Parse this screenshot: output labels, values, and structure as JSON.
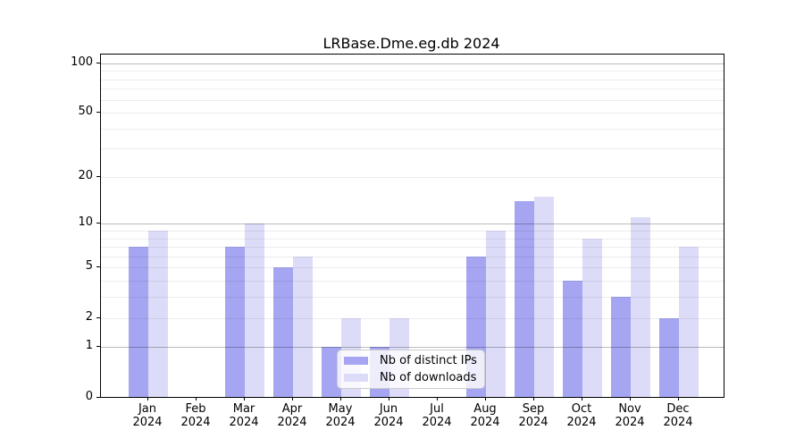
{
  "chart_data": {
    "type": "bar",
    "title": "LRBase.Dme.eg.db 2024",
    "categories": [
      "Jan",
      "Feb",
      "Mar",
      "Apr",
      "May",
      "Jun",
      "Jul",
      "Aug",
      "Sep",
      "Oct",
      "Nov",
      "Dec"
    ],
    "category_year": "2024",
    "series": [
      {
        "name": "Nb of distinct IPs",
        "color": "#a5a5f1",
        "values": [
          7,
          0,
          7,
          5,
          1,
          1,
          0,
          6,
          14,
          4,
          3,
          2
        ]
      },
      {
        "name": "Nb of downloads",
        "color": "#dcdcf8",
        "values": [
          9,
          0,
          10,
          6,
          2,
          2,
          0,
          9,
          15,
          8,
          11,
          7
        ]
      }
    ],
    "y_axis": {
      "scale": "log1p",
      "tick_values": [
        0,
        1,
        2,
        5,
        10,
        20,
        50,
        100
      ],
      "tick_labels": [
        "0",
        "1",
        "2",
        "5",
        "10",
        "20",
        "50",
        "100"
      ],
      "major_gridlines": [
        1,
        10,
        100
      ],
      "minor_gridlines": [
        2,
        3,
        4,
        5,
        6,
        7,
        8,
        9,
        20,
        30,
        40,
        50,
        60,
        70,
        80,
        90
      ],
      "ylim": [
        0,
        115
      ]
    },
    "legend_position": "lower center",
    "grid": true,
    "colors": {
      "background": "#ffffff",
      "spine": "#000000",
      "major_grid": "#bababa",
      "minor_grid": "#ededed",
      "text": "#000000"
    }
  }
}
